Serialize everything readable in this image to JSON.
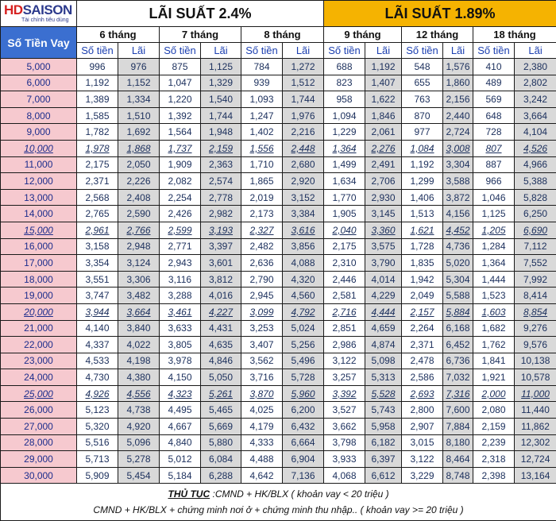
{
  "brand": {
    "hd": "HD",
    "saison": "SAISON",
    "tagline": "Tài chính tiêu dùng"
  },
  "rate_left": "LÃI SUẤT 2.4%",
  "rate_right": "LÃI SUẤT 1.89%",
  "loan_header": "Số Tiền Vay",
  "months": [
    "6 tháng",
    "7 tháng",
    "8 tháng",
    "9 tháng",
    "12 tháng",
    "18  tháng"
  ],
  "sub_amount": "Số tiền",
  "sub_interest": "Lãi",
  "rows": [
    {
      "amt": "5,000",
      "v": [
        "996",
        "976",
        "875",
        "1,125",
        "784",
        "1,272",
        "688",
        "1,192",
        "548",
        "1,576",
        "410",
        "2,380"
      ],
      "hl": false
    },
    {
      "amt": "6,000",
      "v": [
        "1,192",
        "1,152",
        "1,047",
        "1,329",
        "939",
        "1,512",
        "823",
        "1,407",
        "655",
        "1,860",
        "489",
        "2,802"
      ],
      "hl": false
    },
    {
      "amt": "7,000",
      "v": [
        "1,389",
        "1,334",
        "1,220",
        "1,540",
        "1,093",
        "1,744",
        "958",
        "1,622",
        "763",
        "2,156",
        "569",
        "3,242"
      ],
      "hl": false
    },
    {
      "amt": "8,000",
      "v": [
        "1,585",
        "1,510",
        "1,392",
        "1,744",
        "1,247",
        "1,976",
        "1,094",
        "1,846",
        "870",
        "2,440",
        "648",
        "3,664"
      ],
      "hl": false
    },
    {
      "amt": "9,000",
      "v": [
        "1,782",
        "1,692",
        "1,564",
        "1,948",
        "1,402",
        "2,216",
        "1,229",
        "2,061",
        "977",
        "2,724",
        "728",
        "4,104"
      ],
      "hl": false
    },
    {
      "amt": "10,000",
      "v": [
        "1,978",
        "1,868",
        "1,737",
        "2,159",
        "1,556",
        "2,448",
        "1,364",
        "2,276",
        "1,084",
        "3,008",
        "807",
        "4,526"
      ],
      "hl": true
    },
    {
      "amt": "11,000",
      "v": [
        "2,175",
        "2,050",
        "1,909",
        "2,363",
        "1,710",
        "2,680",
        "1,499",
        "2,491",
        "1,192",
        "3,304",
        "887",
        "4,966"
      ],
      "hl": false
    },
    {
      "amt": "12,000",
      "v": [
        "2,371",
        "2,226",
        "2,082",
        "2,574",
        "1,865",
        "2,920",
        "1,634",
        "2,706",
        "1,299",
        "3,588",
        "966",
        "5,388"
      ],
      "hl": false
    },
    {
      "amt": "13,000",
      "v": [
        "2,568",
        "2,408",
        "2,254",
        "2,778",
        "2,019",
        "3,152",
        "1,770",
        "2,930",
        "1,406",
        "3,872",
        "1,046",
        "5,828"
      ],
      "hl": false
    },
    {
      "amt": "14,000",
      "v": [
        "2,765",
        "2,590",
        "2,426",
        "2,982",
        "2,173",
        "3,384",
        "1,905",
        "3,145",
        "1,513",
        "4,156",
        "1,125",
        "6,250"
      ],
      "hl": false
    },
    {
      "amt": "15,000",
      "v": [
        "2,961",
        "2,766",
        "2,599",
        "3,193",
        "2,327",
        "3,616",
        "2,040",
        "3,360",
        "1,621",
        "4,452",
        "1,205",
        "6,690"
      ],
      "hl": true
    },
    {
      "amt": "16,000",
      "v": [
        "3,158",
        "2,948",
        "2,771",
        "3,397",
        "2,482",
        "3,856",
        "2,175",
        "3,575",
        "1,728",
        "4,736",
        "1,284",
        "7,112"
      ],
      "hl": false
    },
    {
      "amt": "17,000",
      "v": [
        "3,354",
        "3,124",
        "2,943",
        "3,601",
        "2,636",
        "4,088",
        "2,310",
        "3,790",
        "1,835",
        "5,020",
        "1,364",
        "7,552"
      ],
      "hl": false
    },
    {
      "amt": "18,000",
      "v": [
        "3,551",
        "3,306",
        "3,116",
        "3,812",
        "2,790",
        "4,320",
        "2,446",
        "4,014",
        "1,942",
        "5,304",
        "1,444",
        "7,992"
      ],
      "hl": false
    },
    {
      "amt": "19,000",
      "v": [
        "3,747",
        "3,482",
        "3,288",
        "4,016",
        "2,945",
        "4,560",
        "2,581",
        "4,229",
        "2,049",
        "5,588",
        "1,523",
        "8,414"
      ],
      "hl": false
    },
    {
      "amt": "20,000",
      "v": [
        "3,944",
        "3,664",
        "3,461",
        "4,227",
        "3,099",
        "4,792",
        "2,716",
        "4,444",
        "2,157",
        "5,884",
        "1,603",
        "8,854"
      ],
      "hl": true
    },
    {
      "amt": "21,000",
      "v": [
        "4,140",
        "3,840",
        "3,633",
        "4,431",
        "3,253",
        "5,024",
        "2,851",
        "4,659",
        "2,264",
        "6,168",
        "1,682",
        "9,276"
      ],
      "hl": false
    },
    {
      "amt": "22,000",
      "v": [
        "4,337",
        "4,022",
        "3,805",
        "4,635",
        "3,407",
        "5,256",
        "2,986",
        "4,874",
        "2,371",
        "6,452",
        "1,762",
        "9,576"
      ],
      "hl": false
    },
    {
      "amt": "23,000",
      "v": [
        "4,533",
        "4,198",
        "3,978",
        "4,846",
        "3,562",
        "5,496",
        "3,122",
        "5,098",
        "2,478",
        "6,736",
        "1,841",
        "10,138"
      ],
      "hl": false
    },
    {
      "amt": "24,000",
      "v": [
        "4,730",
        "4,380",
        "4,150",
        "5,050",
        "3,716",
        "5,728",
        "3,257",
        "5,313",
        "2,586",
        "7,032",
        "1,921",
        "10,578"
      ],
      "hl": false
    },
    {
      "amt": "25,000",
      "v": [
        "4,926",
        "4,556",
        "4,323",
        "5,261",
        "3,870",
        "5,960",
        "3,392",
        "5,528",
        "2,693",
        "7,316",
        "2,000",
        "11,000"
      ],
      "hl": true
    },
    {
      "amt": "26,000",
      "v": [
        "5,123",
        "4,738",
        "4,495",
        "5,465",
        "4,025",
        "6,200",
        "3,527",
        "5,743",
        "2,800",
        "7,600",
        "2,080",
        "11,440"
      ],
      "hl": false
    },
    {
      "amt": "27,000",
      "v": [
        "5,320",
        "4,920",
        "4,667",
        "5,669",
        "4,179",
        "6,432",
        "3,662",
        "5,958",
        "2,907",
        "7,884",
        "2,159",
        "11,862"
      ],
      "hl": false
    },
    {
      "amt": "28,000",
      "v": [
        "5,516",
        "5,096",
        "4,840",
        "5,880",
        "4,333",
        "6,664",
        "3,798",
        "6,182",
        "3,015",
        "8,180",
        "2,239",
        "12,302"
      ],
      "hl": false
    },
    {
      "amt": "29,000",
      "v": [
        "5,713",
        "5,278",
        "5,012",
        "6,084",
        "4,488",
        "6,904",
        "3,933",
        "6,397",
        "3,122",
        "8,464",
        "2,318",
        "12,724"
      ],
      "hl": false
    },
    {
      "amt": "30,000",
      "v": [
        "5,909",
        "5,454",
        "5,184",
        "6,288",
        "4,642",
        "7,136",
        "4,068",
        "6,612",
        "3,229",
        "8,748",
        "2,398",
        "13,164"
      ],
      "hl": false
    }
  ],
  "footer": {
    "proc_label": "THỦ TỤC",
    "line1": ":CMND + HK/BLX ( khoản vay < 20 triệu )",
    "line2": "CMND + HK/BLX + chứng minh nơi ở + chứng minh thu nhập.. ( khoản vay >= 20 triệu )"
  }
}
